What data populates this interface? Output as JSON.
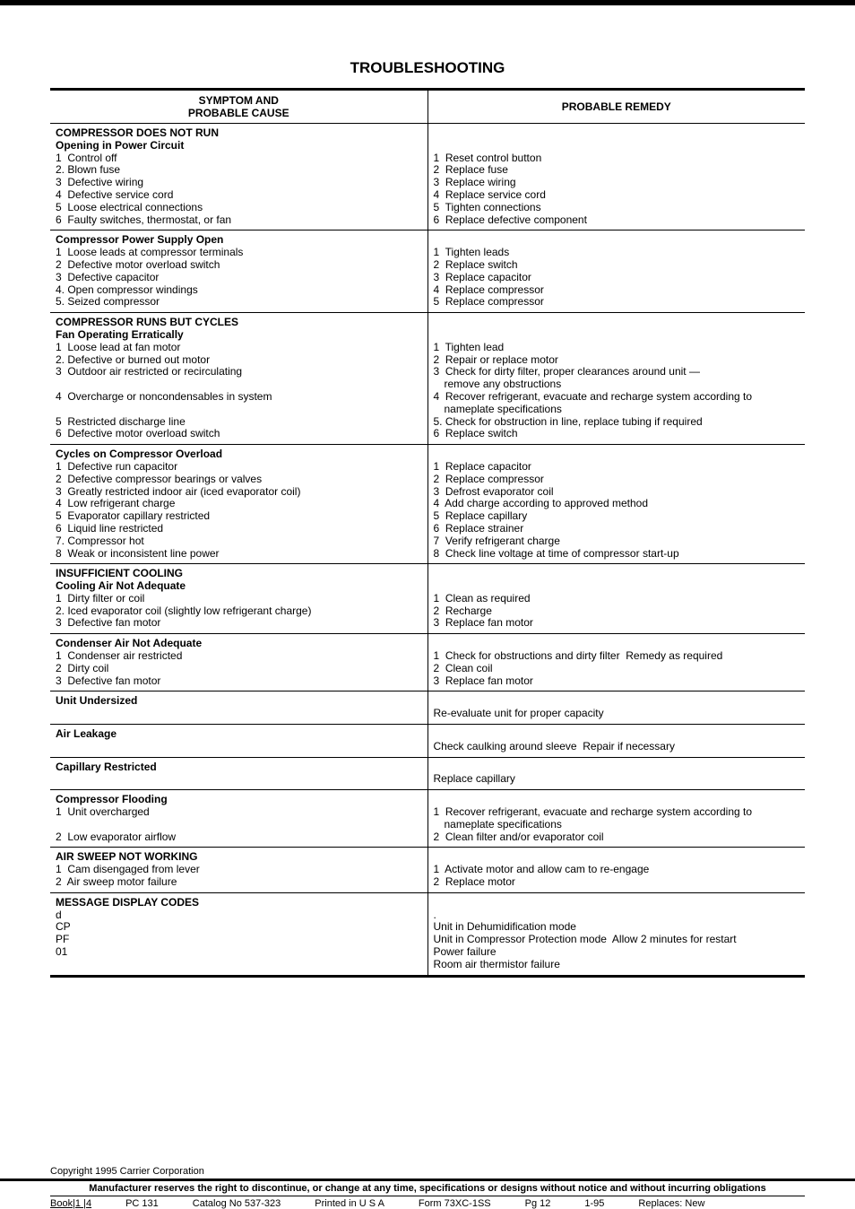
{
  "title": "TROUBLESHOOTING",
  "headers": {
    "col1_line1": "SYMPTOM AND",
    "col1_line2": "PROBABLE CAUSE",
    "col2": "PROBABLE REMEDY"
  },
  "rows": [
    {
      "left": {
        "section": "COMPRESSOR DOES NOT RUN",
        "sub": "Opening in Power Circuit",
        "items": [
          "1  Control off",
          "2. Blown fuse",
          "3  Defective wiring",
          "4  Defective service cord",
          "5  Loose electrical connections",
          "6  Faulty switches, thermostat, or fan"
        ]
      },
      "right": {
        "items": [
          "1  Reset control button",
          "2  Replace fuse",
          "3  Replace wiring",
          "4  Replace service cord",
          "5  Tighten connections",
          "6  Replace defective component"
        ]
      }
    },
    {
      "left": {
        "sub": "Compressor Power Supply Open",
        "items": [
          "1  Loose leads at compressor terminals",
          "2  Defective motor overload switch",
          "3  Defective capacitor",
          "4. Open compressor windings",
          "5. Seized compressor"
        ]
      },
      "right": {
        "items": [
          "1  Tighten leads",
          "2  Replace switch",
          "3  Replace capacitor",
          "4  Replace compressor",
          "5  Replace compressor"
        ]
      }
    },
    {
      "left": {
        "section": "COMPRESSOR RUNS BUT CYCLES",
        "sub": "Fan Operating Erratically",
        "items": [
          "1  Loose lead at fan motor",
          "2. Defective or burned out motor",
          "3  Outdoor air restricted or recirculating",
          "",
          "4  Overcharge or noncondensables in system",
          "",
          "5  Restricted discharge line",
          "6  Defective motor overload switch"
        ]
      },
      "right": {
        "items": [
          "1  Tighten lead",
          "2  Repair or replace motor",
          "3  Check for dirty filter, proper clearances around unit —",
          "    remove any obstructions",
          "4  Recover refrigerant, evacuate and recharge system according to",
          "    nameplate specifications",
          "5. Check for obstruction in line, replace tubing if required",
          "6  Replace switch"
        ]
      }
    },
    {
      "left": {
        "sub": "Cycles on Compressor Overload",
        "items": [
          "1  Defective run capacitor",
          "2  Defective compressor bearings or valves",
          "3  Greatly restricted indoor air (iced evaporator coil)",
          "4  Low refrigerant charge",
          "5  Evaporator capillary restricted",
          "6  Liquid line restricted",
          "7. Compressor hot",
          "8  Weak or inconsistent line power"
        ]
      },
      "right": {
        "items": [
          "1  Replace capacitor",
          "2  Replace compressor",
          "3  Defrost evaporator coil",
          "4  Add charge according to approved method",
          "5  Replace capillary",
          "6  Replace strainer",
          "7  Verify refrigerant charge",
          "8  Check line voltage at time of compressor start-up"
        ]
      }
    },
    {
      "left": {
        "section": "INSUFFICIENT COOLING",
        "sub": "Cooling Air Not Adequate",
        "items": [
          "1  Dirty filter or coil",
          "2. Iced evaporator coil (slightly low refrigerant charge)",
          "3  Defective fan motor"
        ]
      },
      "right": {
        "items": [
          "1  Clean as required",
          "2  Recharge",
          "3  Replace fan motor"
        ]
      }
    },
    {
      "left": {
        "sub": "Condenser Air Not Adequate",
        "items": [
          "1  Condenser air restricted",
          "2  Dirty coil",
          "3  Defective fan motor"
        ]
      },
      "right": {
        "items": [
          "1  Check for obstructions and dirty filter  Remedy as required",
          "2  Clean coil",
          "3  Replace fan motor"
        ]
      }
    },
    {
      "left": {
        "sub": "Unit Undersized",
        "items": []
      },
      "right": {
        "items": [
          "Re-evaluate unit for proper capacity"
        ]
      }
    },
    {
      "left": {
        "sub": "Air Leakage",
        "items": []
      },
      "right": {
        "items": [
          "Check caulking around sleeve  Repair if necessary"
        ]
      }
    },
    {
      "left": {
        "sub": "Capillary Restricted",
        "items": []
      },
      "right": {
        "items": [
          "Replace capillary"
        ]
      }
    },
    {
      "left": {
        "sub": "Compressor Flooding",
        "items": [
          "1  Unit overcharged",
          "",
          "2  Low evaporator airflow"
        ]
      },
      "right": {
        "items": [
          "1  Recover refrigerant, evacuate and recharge system according to",
          "    nameplate specifications",
          "2  Clean filter and/or evaporator coil"
        ]
      }
    },
    {
      "left": {
        "section": "AIR SWEEP NOT WORKING",
        "items": [
          "1  Cam disengaged from lever",
          "2  Air sweep motor failure"
        ]
      },
      "right": {
        "items": [
          "1  Activate motor and allow cam to re-engage",
          "2  Replace motor"
        ]
      }
    },
    {
      "left": {
        "section": "MESSAGE DISPLAY CODES",
        "items": [
          "d",
          "CP",
          "PF",
          "01"
        ]
      },
      "right": {
        "items": [
          ".",
          "Unit in Dehumidification mode",
          "Unit in Compressor Protection mode  Allow 2 minutes for restart",
          "Power failure",
          "Room air thermistor failure"
        ]
      }
    }
  ],
  "copyright": "Copyright 1995 Carrier Corporation",
  "disclaimer": "Manufacturer reserves the right to discontinue, or change at any time, specifications or designs without notice and without incurring obligations",
  "footer": {
    "book": "Book|1 |4",
    "pc": "PC 131",
    "catalog": "Catalog No  537-323",
    "printed": "Printed in U S A",
    "form": "Form 73XC-1SS",
    "pg": "Pg 12",
    "date": "1-95",
    "replaces": "Replaces: New"
  }
}
